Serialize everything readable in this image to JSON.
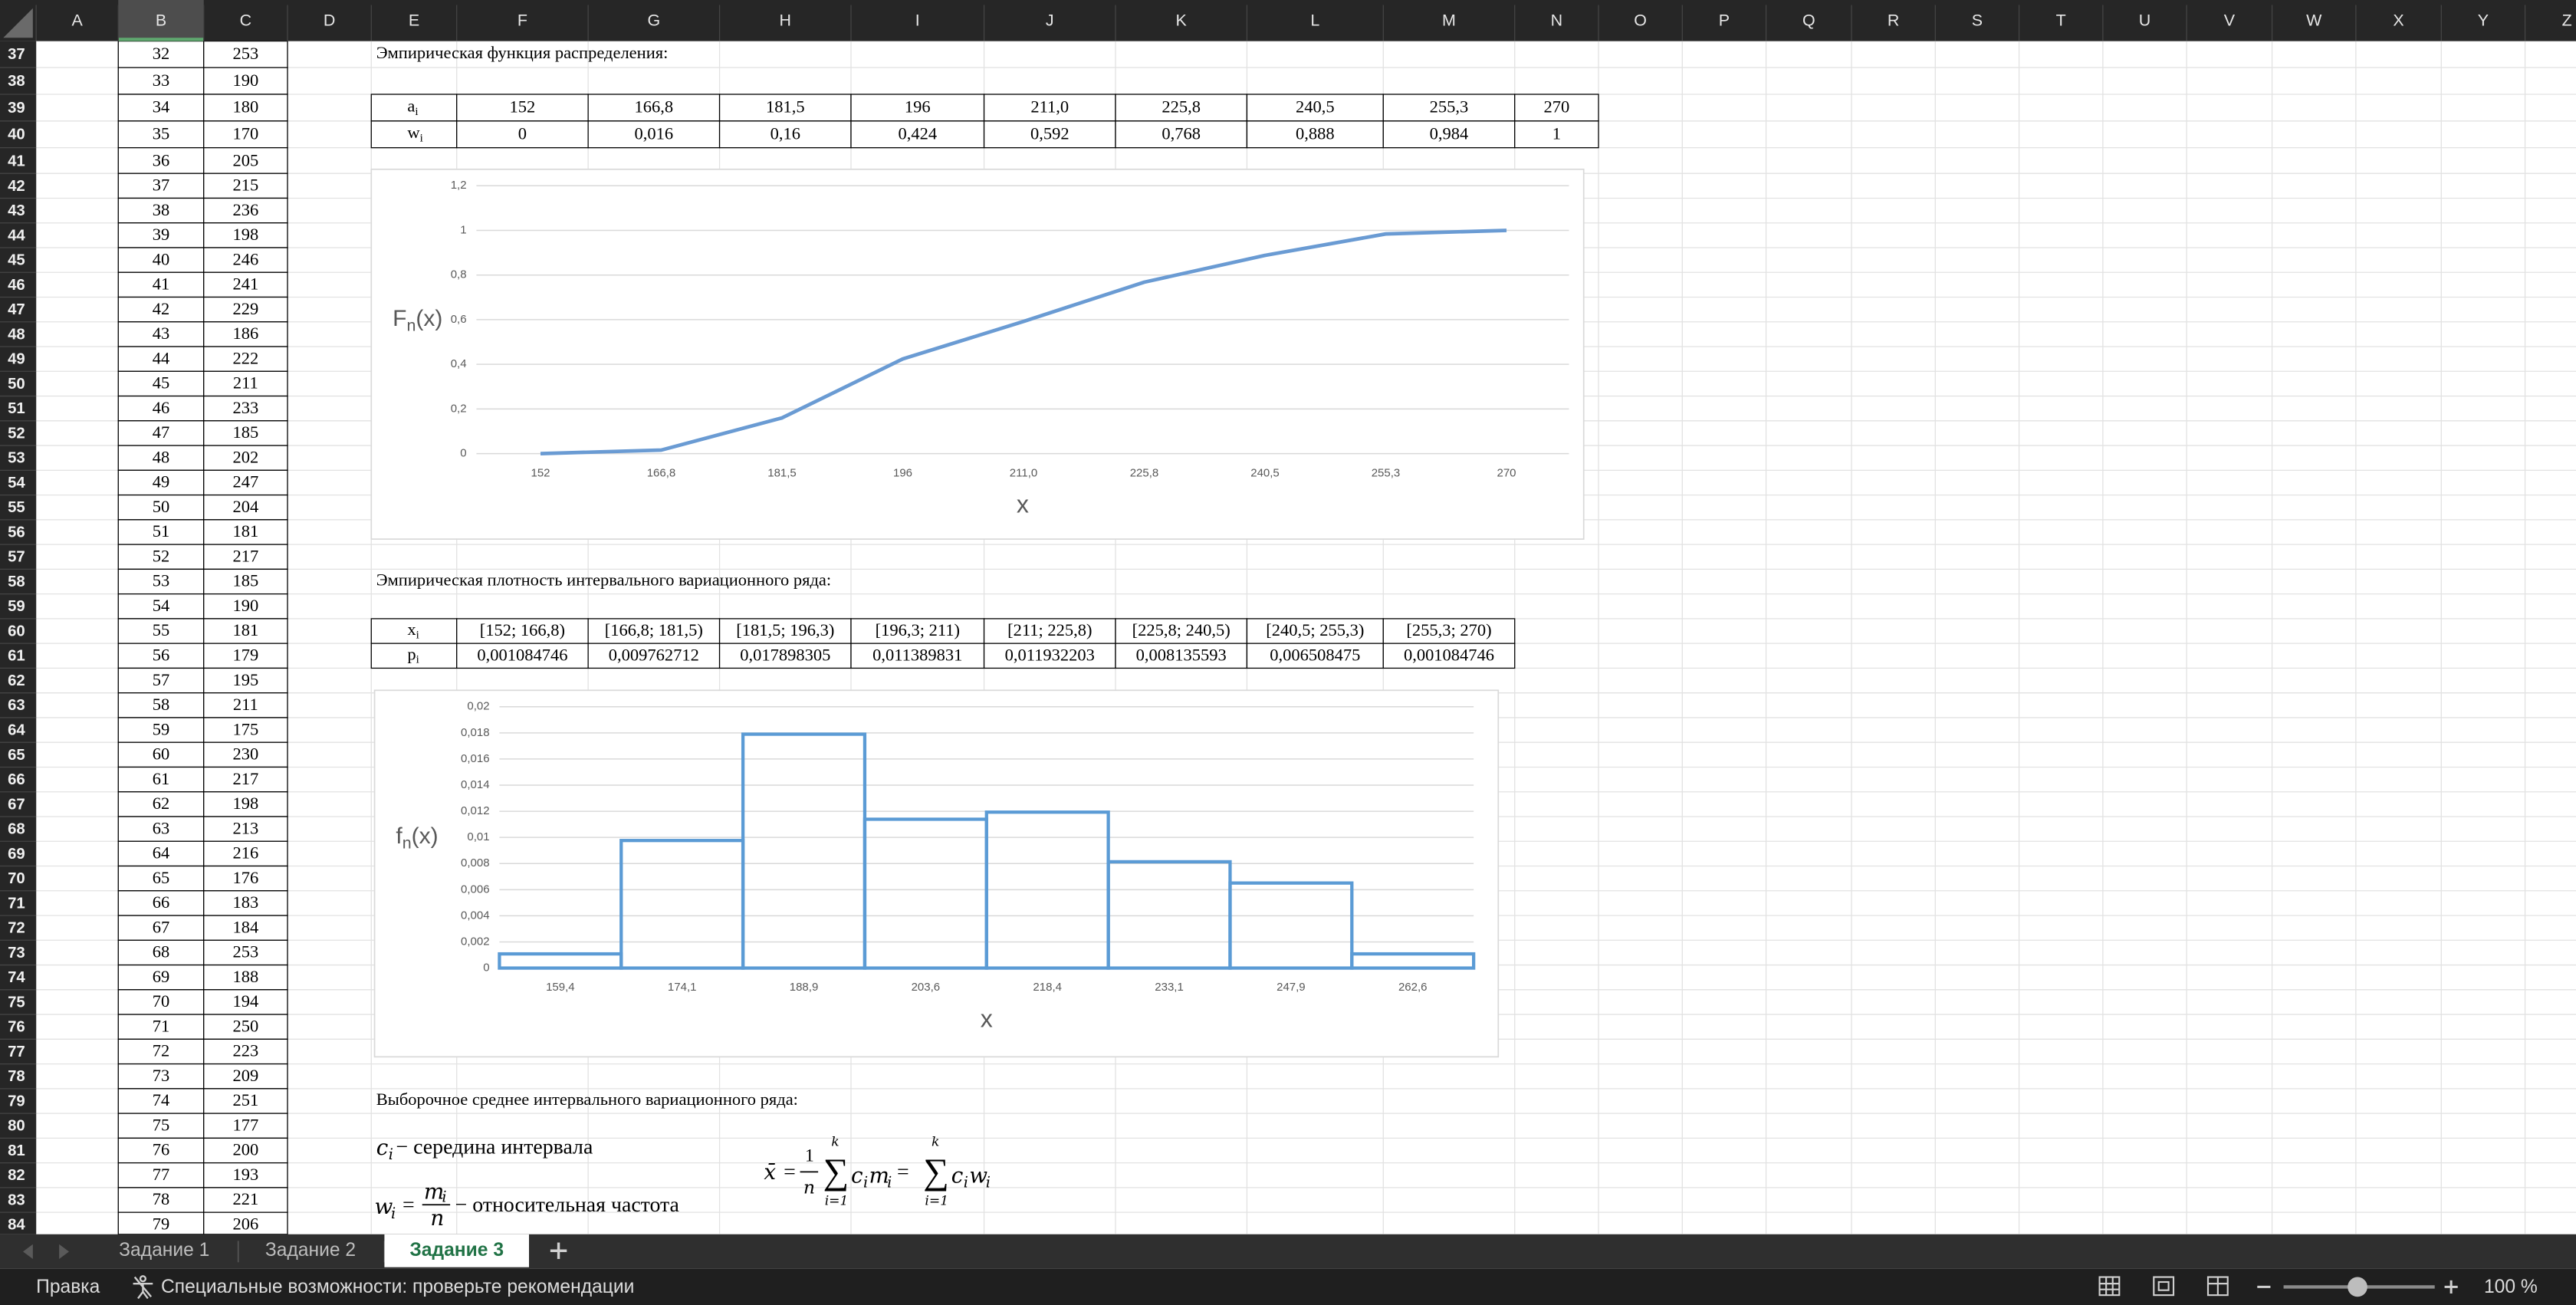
{
  "column_headers": [
    "A",
    "B",
    "C",
    "D",
    "E",
    "F",
    "G",
    "H",
    "I",
    "J",
    "K",
    "L",
    "M",
    "N",
    "O",
    "P",
    "Q",
    "R",
    "S",
    "T",
    "U",
    "V",
    "W",
    "X",
    "Y",
    "Z"
  ],
  "row_numbers": [
    37,
    38,
    39,
    40,
    41,
    42,
    43,
    44,
    45,
    46,
    47,
    48,
    49,
    50,
    51,
    52,
    53,
    54,
    55,
    56,
    57,
    58,
    59,
    60,
    61,
    62,
    63,
    64,
    65,
    66,
    67,
    68,
    69,
    70,
    71,
    72,
    73,
    74,
    75,
    76,
    77,
    78,
    79,
    80,
    81,
    82,
    83,
    84
  ],
  "column_B": [
    32,
    33,
    34,
    35,
    36,
    37,
    38,
    39,
    40,
    41,
    42,
    43,
    44,
    45,
    46,
    47,
    48,
    49,
    50,
    51,
    52,
    53,
    54,
    55,
    56,
    57,
    58,
    59,
    60,
    61,
    62,
    63,
    64,
    65,
    66,
    67,
    68,
    69,
    70,
    71,
    72,
    73,
    74,
    75,
    76,
    77,
    78,
    79
  ],
  "column_C": [
    253,
    190,
    180,
    170,
    205,
    215,
    236,
    198,
    246,
    241,
    229,
    186,
    222,
    211,
    233,
    185,
    202,
    247,
    204,
    181,
    217,
    185,
    190,
    181,
    179,
    195,
    211,
    175,
    230,
    217,
    198,
    213,
    216,
    176,
    183,
    184,
    253,
    188,
    194,
    250,
    223,
    209,
    251,
    177,
    200,
    193,
    221,
    206
  ],
  "headings": [
    "Эмпирическая функция распределения:",
    "Эмпирическая плотность интервального вариационного ряда:",
    "Выборочное среднее интервального вариационного ряда:"
  ],
  "table1": {
    "header": [
      [
        "a",
        "i"
      ],
      [
        "w",
        "i"
      ]
    ],
    "rows": [
      [
        "152",
        "166,8",
        "181,5",
        "196",
        "211,0",
        "225,8",
        "240,5",
        "255,3",
        "270"
      ],
      [
        "0",
        "0,016",
        "0,16",
        "0,424",
        "0,592",
        "0,768",
        "0,888",
        "0,984",
        "1"
      ]
    ]
  },
  "table2": {
    "header": [
      [
        "x",
        "i"
      ],
      [
        "p",
        "i"
      ]
    ],
    "rows": [
      [
        "[152; 166,8)",
        "[166,8; 181,5)",
        "[181,5; 196,3)",
        "[196,3; 211)",
        "[211; 225,8)",
        "[225,8; 240,5)",
        "[240,5; 255,3)",
        "[255,3; 270)"
      ],
      [
        "0,001084746",
        "0,009762712",
        "0,017898305",
        "0,011389831",
        "0,011932203",
        "0,008135593",
        "0,006508475",
        "0,001084746"
      ]
    ]
  },
  "chart_data": [
    {
      "type": "line",
      "y_label": [
        "F",
        "n",
        "(x)"
      ],
      "x_label": "x",
      "categories": [
        "152",
        "166,8",
        "181,5",
        "196",
        "211,0",
        "225,8",
        "240,5",
        "255,3",
        "270"
      ],
      "values": [
        0,
        0.016,
        0.16,
        0.424,
        0.592,
        0.768,
        0.888,
        0.984,
        1
      ],
      "color": "#6a9bd3",
      "ylim": [
        0,
        1.2
      ],
      "yticks": [
        0,
        {
          "value": 0.2,
          "label": "0,2"
        },
        {
          "value": 0.4,
          "label": "0,4"
        },
        {
          "value": 0.6,
          "label": "0,6"
        },
        {
          "value": 0.8,
          "label": "0,8"
        },
        1,
        {
          "value": 1.2,
          "label": "1,2"
        }
      ],
      "grid": true
    },
    {
      "type": "bar",
      "y_label": [
        "f",
        "n",
        "(x)"
      ],
      "x_label": "x",
      "categories": [
        "159,4",
        "174,1",
        "188,9",
        "203,6",
        "218,4",
        "233,1",
        "247,9",
        "262,6"
      ],
      "values": [
        0.001084746,
        0.009762712,
        0.017898305,
        0.011389831,
        0.011932203,
        0.008135593,
        0.006508475,
        0.001084746
      ],
      "color": "#5b9bd5",
      "ylim": [
        0,
        0.02
      ],
      "yticks": [
        0,
        {
          "value": 0.002,
          "label": "0,002"
        },
        {
          "value": 0.004,
          "label": "0,004"
        },
        {
          "value": 0.006,
          "label": "0,006"
        },
        {
          "value": 0.008,
          "label": "0,008"
        },
        {
          "value": 0.01,
          "label": "0,01"
        },
        {
          "value": 0.012,
          "label": "0,012"
        },
        {
          "value": 0.014,
          "label": "0,014"
        },
        {
          "value": 0.016,
          "label": "0,016"
        },
        {
          "value": 0.018,
          "label": "0,018"
        },
        {
          "value": 0.02,
          "label": "0,02"
        }
      ],
      "grid": true
    }
  ],
  "definitions": {
    "c": [
      "c",
      "i",
      "− середина интервала"
    ],
    "w": [
      "w",
      "i",
      "=",
      "m",
      "i",
      "n",
      "− относительная частота"
    ]
  },
  "mean_formula": [
    "x̄",
    "=",
    "1",
    "n",
    "∑",
    "k",
    "i=1",
    "c",
    "i",
    "m",
    "i",
    "=",
    "∑",
    "k",
    "i=1",
    "c",
    "i",
    "w",
    "i"
  ],
  "tabs": [
    "Задание 1",
    "Задание 2",
    "Задание 3"
  ],
  "active_tab": 2,
  "status_bar": {
    "mode": "Правка",
    "accessibility": "Специальные возможности: проверьте рекомендации",
    "zoom": "100 %"
  }
}
